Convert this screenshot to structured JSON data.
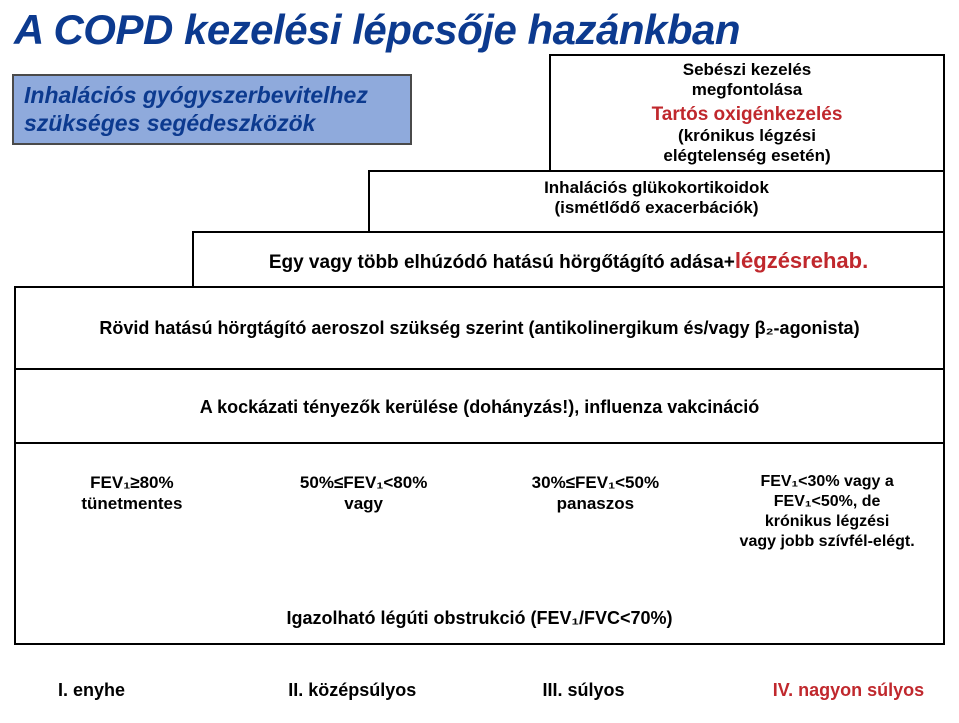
{
  "title": "A COPD kezelési lépcsője hazánkban",
  "blueBox": {
    "line1": "Inhalációs gyógyszerbevitelhez",
    "line2": "szükséges segédeszközök"
  },
  "stepTop": {
    "l1": "Sebészi kezelés",
    "l2": "megfontolása",
    "l3": "Tartós oxigénkezelés",
    "l4": "(krónikus légzési",
    "l5": "elégtelenség esetén)"
  },
  "step2": {
    "l1": "Inhalációs glükokortikoidok",
    "l2": "(ismétlődő exacerbációk)"
  },
  "step3": {
    "pre": "Egy vagy több elhúzódó hatású hörgőtágító adása+",
    "red": "légzésrehab."
  },
  "step4": "Rövid hatású hörgtágító aeroszol szükség szerint (antikolinergikum és/vagy β₂-agonista)",
  "step5": "A kockázati tényezők kerülése (dohányzás!), influenza vakcináció",
  "sev": {
    "c1a": "FEV₁≥80%",
    "c1b": "tünetmentes",
    "c2a": "50%≤FEV₁<80%",
    "c2b": "vagy",
    "c3a": "30%≤FEV₁<50%",
    "c3b": "panaszos",
    "c4a": "FEV₁<30% vagy a",
    "c4b": "FEV₁<50%, de",
    "c4c": "krónikus légzési",
    "c4d": "vagy jobb szívfél-elégt."
  },
  "obstr": "Igazolható légúti obstrukció (FEV₁/FVC<70%)",
  "stages": {
    "s1": "I. enyhe",
    "s2": "II. középsúlyos",
    "s3": "III. súlyos",
    "s4": "IV. nagyon súlyos"
  },
  "colors": {
    "titleBlue": "#0c3a8f",
    "red": "#c0282d",
    "boxBlue": "#8faadc"
  }
}
